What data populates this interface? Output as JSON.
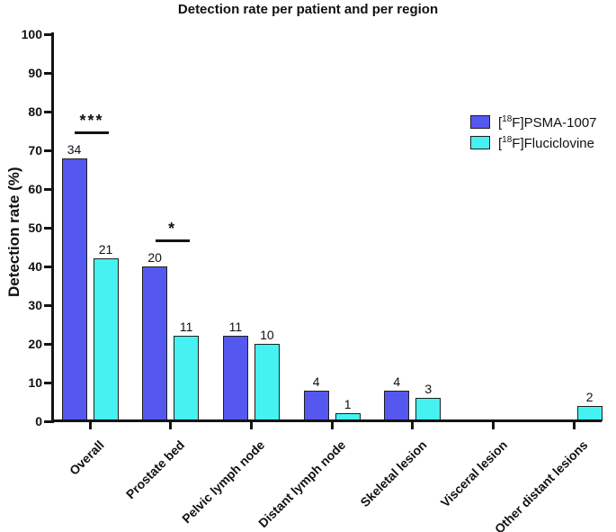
{
  "chart_data": {
    "type": "bar",
    "title": "Detection rate per patient and per region",
    "ylabel": "Detection rate (%)",
    "xlabel": "",
    "ylim": [
      0,
      100
    ],
    "yticks": [
      0,
      10,
      20,
      30,
      40,
      50,
      60,
      70,
      80,
      90,
      100
    ],
    "grid": false,
    "legend_position": "upper-right",
    "categories": [
      "Overall",
      "Prostate bed",
      "Pelvic lymph node",
      "Distant lymph node",
      "Skeletal lesion",
      "Visceral lesion",
      "Other distant lesions"
    ],
    "series": [
      {
        "name": "[18F]PSMA-1007",
        "legend": {
          "prefix": "[",
          "isotope": "18",
          "suffix": "F]PSMA-1007"
        },
        "color": "#5558ee",
        "values_percent": [
          68,
          40,
          22,
          8,
          8,
          0,
          0
        ],
        "bar_count_labels": [
          "34",
          "20",
          "11",
          "4",
          "4",
          "",
          ""
        ]
      },
      {
        "name": "[18F]Fluciclovine",
        "legend": {
          "prefix": "[",
          "isotope": "18",
          "suffix": "F]Fluciclovine"
        },
        "color": "#45f1f1",
        "values_percent": [
          42,
          22,
          20,
          2,
          6,
          0,
          4
        ],
        "bar_count_labels": [
          "21",
          "11",
          "10",
          "1",
          "3",
          "",
          "2"
        ]
      }
    ],
    "significance_markers": [
      {
        "category_index": 0,
        "category": "Overall",
        "label": "***",
        "line_percent": 75
      },
      {
        "category_index": 1,
        "category": "Prostate bed",
        "label": "*",
        "line_percent": 47
      }
    ],
    "colors": {
      "axis": "#141414",
      "bar_border": "#1f1f1f",
      "psma_fill": "#5558ee",
      "fluciclovine_fill": "#45f1f1",
      "background": "#ffffff"
    }
  }
}
